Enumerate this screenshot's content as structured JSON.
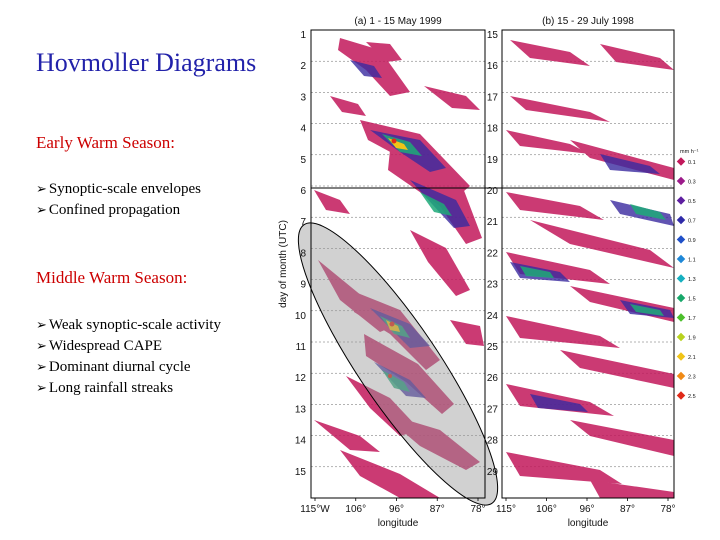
{
  "slide": {
    "title": "Hovmoller Diagrams",
    "sections": [
      {
        "heading": "Early Warm Season:",
        "bullets": [
          "Synoptic-scale envelopes",
          "Confined propagation"
        ]
      },
      {
        "heading": "Middle Warm Season:",
        "bullets": [
          "Weak synoptic-scale activity",
          "Widespread CAPE",
          "Dominant diurnal cycle",
          "Long rainfall streaks"
        ]
      }
    ]
  },
  "figure": {
    "panels": [
      {
        "title": "(a)  1 - 15 May 1999",
        "days": [
          "1",
          "2",
          "3",
          "4",
          "5",
          "6",
          "7",
          "8",
          "9",
          "10",
          "11",
          "12",
          "13",
          "14",
          "15"
        ]
      },
      {
        "title": "(b)  15 - 29 July 1998",
        "days": [
          "15",
          "16",
          "17",
          "18",
          "19",
          "20",
          "21",
          "22",
          "23",
          "24",
          "25",
          "26",
          "27",
          "28",
          "29"
        ]
      }
    ],
    "ylabel": "day of month (UTC)",
    "xlabel": "longitude",
    "xticks_a": [
      "115°W",
      "106°",
      "96°",
      "87°",
      "78°"
    ],
    "xticks_b": [
      "115°",
      "106°",
      "96°",
      "87°",
      "78°"
    ],
    "legend": {
      "unit": "mm h⁻¹",
      "labels": [
        "0.1",
        "0.3",
        "0.5",
        "0.7",
        "0.9",
        "1.1",
        "1.3",
        "1.5",
        "1.7",
        "1.9",
        "2.1",
        "2.3",
        "2.5"
      ],
      "colors": [
        "#c2185b",
        "#9c1a8a",
        "#5e1fa0",
        "#2f2aa8",
        "#2050c8",
        "#1e88d8",
        "#16b0c0",
        "#17a86a",
        "#4cbf2c",
        "#b8d21e",
        "#f0c418",
        "#f08a16",
        "#e02a18"
      ]
    }
  }
}
